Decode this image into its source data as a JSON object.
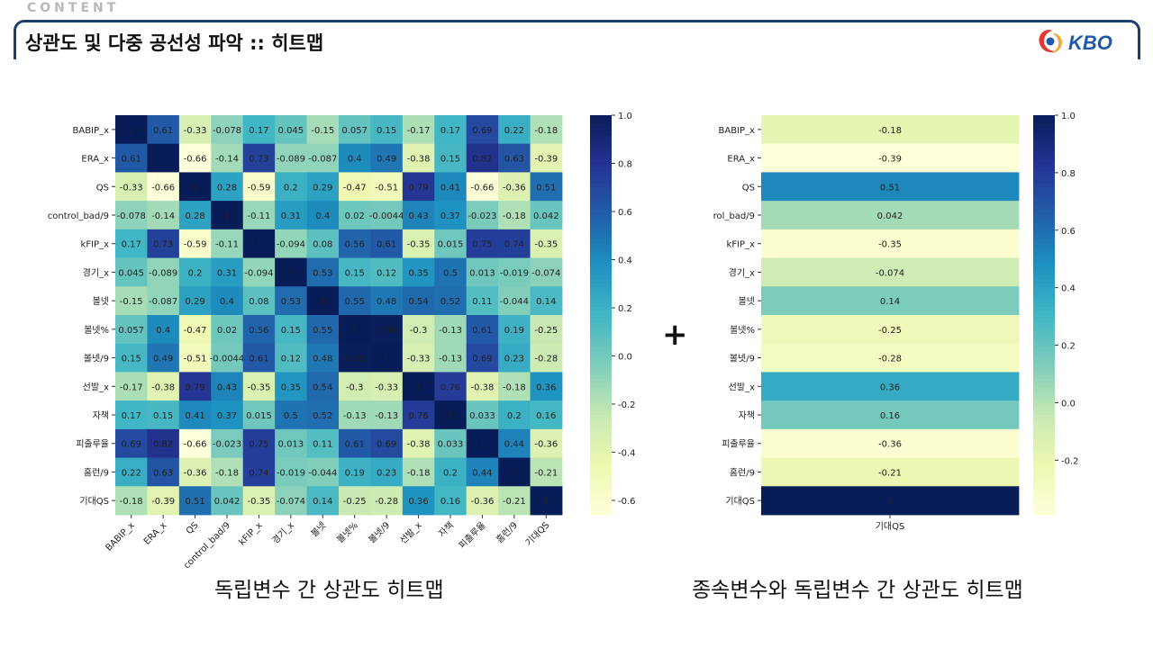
{
  "header": {
    "section_label": "CONTENT",
    "title": "상관도 및 다중 공선성 파악 :: 히트맵",
    "logo_text": "KBO"
  },
  "plus": "+",
  "captions": {
    "left": "독립변수 간 상관도 히트맵",
    "right": "종속변수와 독립변수 간 상관도 히트맵"
  },
  "colors": {
    "title_bar": "#1d3f6e",
    "cmap": [
      "#ffffd9",
      "#edf8b1",
      "#c7e9b4",
      "#7fcdbb",
      "#41b6c4",
      "#1d91c0",
      "#225ea8",
      "#253494",
      "#081d58"
    ]
  },
  "chart_data": [
    {
      "type": "heatmap",
      "title": "독립변수 간 상관도 히트맵",
      "colormap": "YlGnBu",
      "vmin": -0.66,
      "vmax": 1.0,
      "colorbar_ticks": [
        "1.0",
        "0.8",
        "0.6",
        "0.4",
        "0.2",
        "0.0",
        "-0.2",
        "-0.4",
        "-0.6"
      ],
      "colorbar_tick_values": [
        1.0,
        0.8,
        0.6,
        0.4,
        0.2,
        0.0,
        -0.2,
        -0.4,
        -0.6
      ],
      "row_labels": [
        "BABIP_x",
        "ERA_x",
        "QS",
        "control_bad/9",
        "kFIP_x",
        "경기_x",
        "볼넷",
        "볼넷%",
        "볼넷/9",
        "선발_x",
        "자책",
        "피출루율",
        "홈런/9",
        "기대QS"
      ],
      "col_labels": [
        "BABIP_x",
        "ERA_x",
        "QS",
        "control_bad/9",
        "kFIP_x",
        "경기_x",
        "볼넷",
        "볼넷%",
        "볼넷/9",
        "선발_x",
        "자책",
        "피출루율",
        "홈런/9",
        "기대QS"
      ],
      "values": [
        [
          1,
          0.61,
          -0.33,
          -0.078,
          0.17,
          0.045,
          -0.15,
          0.057,
          0.15,
          -0.17,
          0.17,
          0.69,
          0.22,
          -0.18
        ],
        [
          0.61,
          1,
          -0.66,
          -0.14,
          0.73,
          -0.089,
          -0.087,
          0.4,
          0.49,
          -0.38,
          0.15,
          0.82,
          0.63,
          -0.39
        ],
        [
          -0.33,
          -0.66,
          1,
          0.28,
          -0.59,
          0.2,
          0.29,
          -0.47,
          -0.51,
          0.79,
          0.41,
          -0.66,
          -0.36,
          0.51
        ],
        [
          -0.078,
          -0.14,
          0.28,
          1,
          -0.11,
          0.31,
          0.4,
          0.02,
          -0.0044,
          0.43,
          0.37,
          -0.023,
          -0.18,
          0.042
        ],
        [
          0.17,
          0.73,
          -0.59,
          -0.11,
          1,
          -0.094,
          0.08,
          0.56,
          0.61,
          -0.35,
          0.015,
          0.75,
          0.74,
          -0.35
        ],
        [
          0.045,
          -0.089,
          0.2,
          0.31,
          -0.094,
          1,
          0.53,
          0.15,
          0.12,
          0.35,
          0.5,
          0.013,
          -0.019,
          -0.074
        ],
        [
          -0.15,
          -0.087,
          0.29,
          0.4,
          0.08,
          0.53,
          1,
          0.55,
          0.48,
          0.54,
          0.52,
          0.11,
          -0.044,
          0.14
        ],
        [
          0.057,
          0.4,
          -0.47,
          0.02,
          0.56,
          0.15,
          0.55,
          1,
          0.99,
          -0.3,
          -0.13,
          0.61,
          0.19,
          -0.25
        ],
        [
          0.15,
          0.49,
          -0.51,
          -0.0044,
          0.61,
          0.12,
          0.48,
          0.99,
          1,
          -0.33,
          -0.13,
          0.69,
          0.23,
          -0.28
        ],
        [
          -0.17,
          -0.38,
          0.79,
          0.43,
          -0.35,
          0.35,
          0.54,
          -0.3,
          -0.33,
          1,
          0.76,
          -0.38,
          -0.18,
          0.36
        ],
        [
          0.17,
          0.15,
          0.41,
          0.37,
          0.015,
          0.5,
          0.52,
          -0.13,
          -0.13,
          0.76,
          1,
          0.033,
          0.2,
          0.16
        ],
        [
          0.69,
          0.82,
          -0.66,
          -0.023,
          0.75,
          0.013,
          0.11,
          0.61,
          0.69,
          -0.38,
          0.033,
          1,
          0.44,
          -0.36
        ],
        [
          0.22,
          0.63,
          -0.36,
          -0.18,
          0.74,
          -0.019,
          -0.044,
          0.19,
          0.23,
          -0.18,
          0.2,
          0.44,
          1,
          -0.21
        ],
        [
          -0.18,
          -0.39,
          0.51,
          0.042,
          -0.35,
          -0.074,
          0.14,
          -0.25,
          -0.28,
          0.36,
          0.16,
          -0.36,
          -0.21,
          1
        ]
      ],
      "value_labels": [
        [
          "1",
          "0.61",
          "-0.33",
          "-0.078",
          "0.17",
          "0.045",
          "-0.15",
          "0.057",
          "0.15",
          "-0.17",
          "0.17",
          "0.69",
          "0.22",
          "-0.18"
        ],
        [
          "0.61",
          "1",
          "-0.66",
          "-0.14",
          "0.73",
          "-0.089",
          "-0.087",
          "0.4",
          "0.49",
          "-0.38",
          "0.15",
          "0.82",
          "0.63",
          "-0.39"
        ],
        [
          "-0.33",
          "-0.66",
          "1",
          "0.28",
          "-0.59",
          "0.2",
          "0.29",
          "-0.47",
          "-0.51",
          "0.79",
          "0.41",
          "-0.66",
          "-0.36",
          "0.51"
        ],
        [
          "-0.078",
          "-0.14",
          "0.28",
          "1",
          "-0.11",
          "0.31",
          "0.4",
          "0.02",
          "-0.0044",
          "0.43",
          "0.37",
          "-0.023",
          "-0.18",
          "0.042"
        ],
        [
          "0.17",
          "0.73",
          "-0.59",
          "-0.11",
          "1",
          "-0.094",
          "0.08",
          "0.56",
          "0.61",
          "-0.35",
          "0.015",
          "0.75",
          "0.74",
          "-0.35"
        ],
        [
          "0.045",
          "-0.089",
          "0.2",
          "0.31",
          "-0.094",
          "1",
          "0.53",
          "0.15",
          "0.12",
          "0.35",
          "0.5",
          "0.013",
          "-0.019",
          "-0.074"
        ],
        [
          "-0.15",
          "-0.087",
          "0.29",
          "0.4",
          "0.08",
          "0.53",
          "1",
          "0.55",
          "0.48",
          "0.54",
          "0.52",
          "0.11",
          "-0.044",
          "0.14"
        ],
        [
          "0.057",
          "0.4",
          "-0.47",
          "0.02",
          "0.56",
          "0.15",
          "0.55",
          "1",
          "0.99",
          "-0.3",
          "-0.13",
          "0.61",
          "0.19",
          "-0.25"
        ],
        [
          "0.15",
          "0.49",
          "-0.51",
          "-0.0044",
          "0.61",
          "0.12",
          "0.48",
          "0.99",
          "1",
          "-0.33",
          "-0.13",
          "0.69",
          "0.23",
          "-0.28"
        ],
        [
          "-0.17",
          "-0.38",
          "0.79",
          "0.43",
          "-0.35",
          "0.35",
          "0.54",
          "-0.3",
          "-0.33",
          "1",
          "0.76",
          "-0.38",
          "-0.18",
          "0.36"
        ],
        [
          "0.17",
          "0.15",
          "0.41",
          "0.37",
          "0.015",
          "0.5",
          "0.52",
          "-0.13",
          "-0.13",
          "0.76",
          "1",
          "0.033",
          "0.2",
          "0.16"
        ],
        [
          "0.69",
          "0.82",
          "-0.66",
          "-0.023",
          "0.75",
          "0.013",
          "0.11",
          "0.61",
          "0.69",
          "-0.38",
          "0.033",
          "1",
          "0.44",
          "-0.36"
        ],
        [
          "0.22",
          "0.63",
          "-0.36",
          "-0.18",
          "0.74",
          "-0.019",
          "-0.044",
          "0.19",
          "0.23",
          "-0.18",
          "0.2",
          "0.44",
          "1",
          "-0.21"
        ],
        [
          "-0.18",
          "-0.39",
          "0.51",
          "0.042",
          "-0.35",
          "-0.074",
          "0.14",
          "-0.25",
          "-0.28",
          "0.36",
          "0.16",
          "-0.36",
          "-0.21",
          "1"
        ]
      ]
    },
    {
      "type": "heatmap",
      "title": "종속변수와 독립변수 간 상관도 히트맵",
      "colormap": "YlGnBu",
      "vmin": -0.39,
      "vmax": 1.0,
      "colorbar_ticks": [
        "1.0",
        "0.8",
        "0.6",
        "0.4",
        "0.2",
        "0.0",
        "-0.2"
      ],
      "colorbar_tick_values": [
        1.0,
        0.8,
        0.6,
        0.4,
        0.2,
        0.0,
        -0.2
      ],
      "row_labels": [
        "BABIP_x",
        "ERA_x",
        "QS",
        "rol_bad/9",
        "kFIP_x",
        "경기_x",
        "볼넷",
        "볼넷%",
        "볼넷/9",
        "선발_x",
        "자책",
        "피출루율",
        "홈런/9",
        "기대QS"
      ],
      "col_labels": [
        "기대QS"
      ],
      "values": [
        [
          -0.18
        ],
        [
          -0.39
        ],
        [
          0.51
        ],
        [
          0.042
        ],
        [
          -0.35
        ],
        [
          -0.074
        ],
        [
          0.14
        ],
        [
          -0.25
        ],
        [
          -0.28
        ],
        [
          0.36
        ],
        [
          0.16
        ],
        [
          -0.36
        ],
        [
          -0.21
        ],
        [
          1
        ]
      ],
      "value_labels": [
        [
          "-0.18"
        ],
        [
          "-0.39"
        ],
        [
          "0.51"
        ],
        [
          "0.042"
        ],
        [
          "-0.35"
        ],
        [
          "-0.074"
        ],
        [
          "0.14"
        ],
        [
          "-0.25"
        ],
        [
          "-0.28"
        ],
        [
          "0.36"
        ],
        [
          "0.16"
        ],
        [
          "-0.36"
        ],
        [
          "-0.21"
        ],
        [
          "1"
        ]
      ]
    }
  ]
}
